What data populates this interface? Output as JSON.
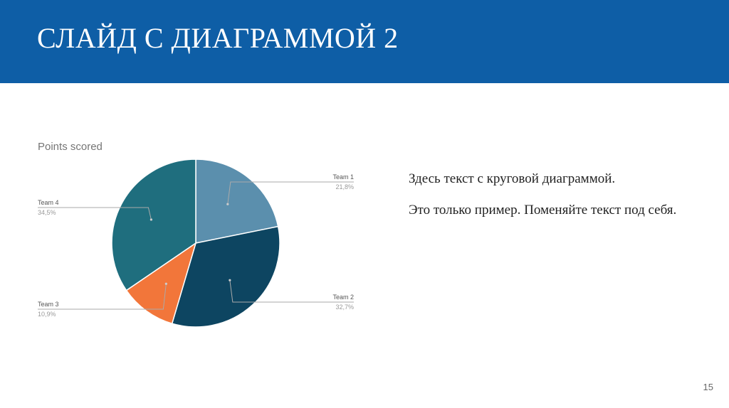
{
  "slide": {
    "title": "СЛАЙД С ДИАГРАММОЙ 2",
    "paragraph_1": "Здесь текст с круговой диаграммой.",
    "paragraph_2": "Это только пример. Поменяйте текст под себя.",
    "page_number": "15"
  },
  "colors": {
    "header": "#0e5ea6"
  },
  "chart_data": {
    "type": "pie",
    "title": "Points scored",
    "slices": [
      {
        "name": "Team 1",
        "value": 21.8,
        "label": "21,8%",
        "color": "#5b8fad"
      },
      {
        "name": "Team 2",
        "value": 32.7,
        "label": "32,7%",
        "color": "#0d4561"
      },
      {
        "name": "Team 3",
        "value": 10.9,
        "label": "10,9%",
        "color": "#f2763a"
      },
      {
        "name": "Team 4",
        "value": 34.5,
        "label": "34,5%",
        "color": "#1f6e7e"
      }
    ],
    "legend": "none",
    "start_angle": "12 o'clock, clockwise"
  }
}
